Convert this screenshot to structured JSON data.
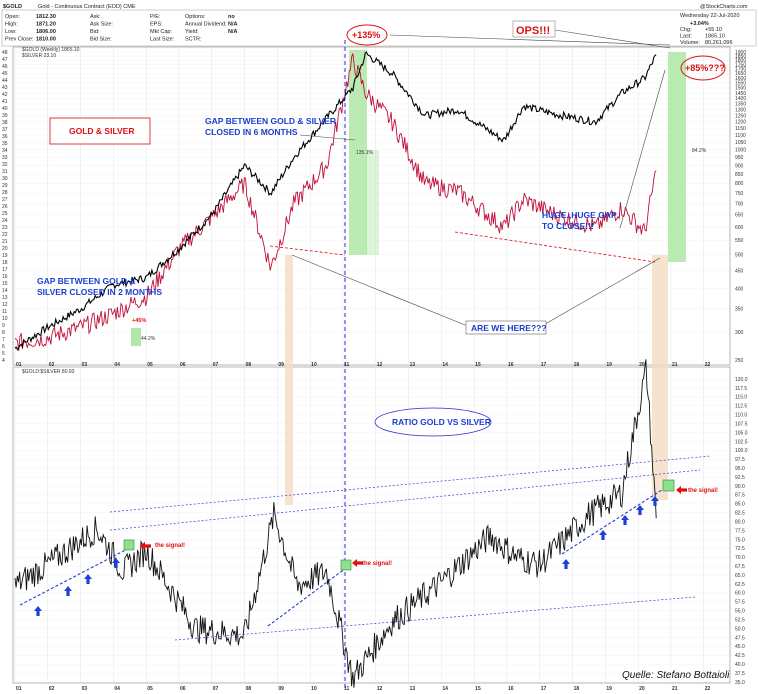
{
  "header": {
    "symbol": "$GOLD",
    "description": "Gold - Continuous Contract (EOD) CME",
    "logo_text": "@StockCharts.com",
    "date_line": "Wednesday 22-Jul-2020",
    "change_pct": "+3.04%",
    "fields": [
      {
        "label": "Open:",
        "value": "1812.30"
      },
      {
        "label": "High:",
        "value": "1871.20"
      },
      {
        "label": "Low:",
        "value": "1806.00"
      },
      {
        "label": "Prev Close:",
        "value": "1810.00"
      }
    ],
    "fields2": [
      {
        "label": "Ask:",
        "value": ""
      },
      {
        "label": "Ask Size:",
        "value": ""
      },
      {
        "label": "Bid:",
        "value": ""
      },
      {
        "label": "Bid Size:",
        "value": ""
      }
    ],
    "fields3": [
      {
        "label": "P/E:",
        "value": ""
      },
      {
        "label": "EPS:",
        "value": ""
      },
      {
        "label": "Mkt Cap:",
        "value": ""
      },
      {
        "label": "Last Size:",
        "value": ""
      }
    ],
    "fields4": [
      {
        "label": "Options:",
        "value": "no"
      },
      {
        "label": "Annual Dividend:",
        "value": "N/A"
      },
      {
        "label": "Yield:",
        "value": "N/A"
      },
      {
        "label": "SCTR:",
        "value": ""
      }
    ],
    "right_fields": [
      {
        "label": "Chg:",
        "value": "+55.10"
      },
      {
        "label": "Last:",
        "value": "1865.10"
      },
      {
        "label": "Volume:",
        "value": "80,261,096"
      }
    ]
  },
  "top_panel": {
    "legend_gold": "$GOLD (Weekly) 1865.10",
    "legend_silver": "$SILVER 23.10"
  },
  "bottom_panel": {
    "legend_ratio": "$GOLD:$SILVER 80.93"
  },
  "annotations": {
    "gold_silver_title": "GOLD &  SILVER",
    "gap_6_months": [
      "GAP BETWEEN GOLD & SILVER",
      "CLOSED IN 6 MONTHS"
    ],
    "gap_2_months": [
      "GAP BETWEEN GOLD &",
      "SILVER CLOSED IN 2 MONTHS"
    ],
    "huge_gap": [
      "HUGE,,HUGE GAP",
      "TO CLOSE!!!"
    ],
    "are_we_here": "ARE WE HERE???",
    "pct_135": "+135%",
    "ops": "OPS!!!",
    "pct_85": "+85%???",
    "pct_45": "+45%",
    "small_pct_1": "135.1%",
    "small_pct_2": "84.2%",
    "small_pct_3": "44.2%",
    "ratio_title": "RATIO GOLD VS SILVER",
    "signal": "the signal!",
    "source": "Quelle: Stefano Bottaioli"
  },
  "chart_data": [
    {
      "type": "line",
      "title": "$GOLD (Weekly) vs $SILVER",
      "scale": "log",
      "ylim": [
        250,
        1900
      ],
      "x": [
        2001.0,
        2002.0,
        2003.0,
        2004.0,
        2005.0,
        2006.0,
        2007.0,
        2008.0,
        2008.8,
        2009.5,
        2010.5,
        2011.3,
        2011.7,
        2012.5,
        2013.5,
        2014.5,
        2015.9,
        2016.5,
        2017.5,
        2018.7,
        2019.5,
        2020.2,
        2020.55
      ],
      "series": [
        {
          "name": "$GOLD (Weekly)",
          "color": "#000000",
          "values": [
            270,
            310,
            350,
            410,
            430,
            520,
            650,
            900,
            750,
            950,
            1230,
            1500,
            1880,
            1650,
            1250,
            1300,
            1060,
            1330,
            1260,
            1200,
            1450,
            1600,
            1865
          ]
        },
        {
          "name": "$SILVER",
          "color": "#c0103a",
          "values": [
            280,
            290,
            310,
            340,
            380,
            520,
            640,
            800,
            460,
            700,
            900,
            1800,
            1450,
            1200,
            800,
            760,
            600,
            720,
            650,
            600,
            680,
            580,
            870
          ]
        }
      ]
    },
    {
      "type": "line",
      "title": "$GOLD:$SILVER",
      "ylim": [
        35,
        122
      ],
      "x": [
        2001.0,
        2002.0,
        2003.5,
        2004.3,
        2005.0,
        2006.5,
        2008.0,
        2008.9,
        2009.6,
        2010.5,
        2011.3,
        2012.5,
        2014.0,
        2015.5,
        2016.3,
        2017.0,
        2018.5,
        2019.5,
        2020.25,
        2020.55
      ],
      "series": [
        {
          "name": "$GOLD:$SILVER",
          "color": "#111111",
          "values": [
            62,
            68,
            78,
            66,
            72,
            50,
            48,
            82,
            62,
            66,
            36,
            52,
            63,
            76,
            70,
            68,
            82,
            88,
            123,
            80.93
          ]
        }
      ],
      "reference_values": {
        "signal_level": 80.93
      }
    }
  ],
  "axes": {
    "gold_ticks": [
      "1900",
      "1850",
      "1800",
      "1750",
      "1700",
      "1650",
      "1600",
      "1550",
      "1500",
      "1450",
      "1400",
      "1350",
      "1300",
      "1250",
      "1200",
      "1150",
      "1100",
      "1050",
      "1000",
      "950",
      "900",
      "850",
      "800",
      "750",
      "700",
      "650",
      "600",
      "550",
      "500",
      "450",
      "400",
      "350",
      "300",
      "250"
    ],
    "silver_ticks": [
      "48",
      "47",
      "46",
      "45",
      "44",
      "43",
      "42",
      "41",
      "40",
      "39",
      "38",
      "37",
      "36",
      "35",
      "34",
      "33",
      "32",
      "31",
      "30",
      "29",
      "28",
      "27",
      "26",
      "25",
      "24",
      "23",
      "22",
      "21",
      "20",
      "19",
      "18",
      "17",
      "16",
      "15",
      "14",
      "13",
      "12",
      "11",
      "10",
      "9",
      "8",
      "7",
      "6",
      "5",
      "4"
    ],
    "ratio_ticks": [
      "120.0",
      "117.5",
      "115.0",
      "112.5",
      "110.0",
      "107.5",
      "105.0",
      "102.5",
      "100.0",
      "97.5",
      "95.0",
      "92.5",
      "90.0",
      "87.5",
      "85.0",
      "82.5",
      "80.0",
      "77.5",
      "75.0",
      "72.5",
      "70.0",
      "67.5",
      "65.0",
      "62.5",
      "60.0",
      "57.5",
      "55.0",
      "52.5",
      "50.0",
      "47.5",
      "45.0",
      "42.5",
      "40.0",
      "37.5",
      "35.0"
    ],
    "year_labels": [
      "01",
      "02",
      "03",
      "04",
      "05",
      "06",
      "07",
      "08",
      "09",
      "10",
      "11",
      "12",
      "13",
      "14",
      "15",
      "16",
      "17",
      "18",
      "19",
      "20",
      "21",
      "22"
    ]
  }
}
